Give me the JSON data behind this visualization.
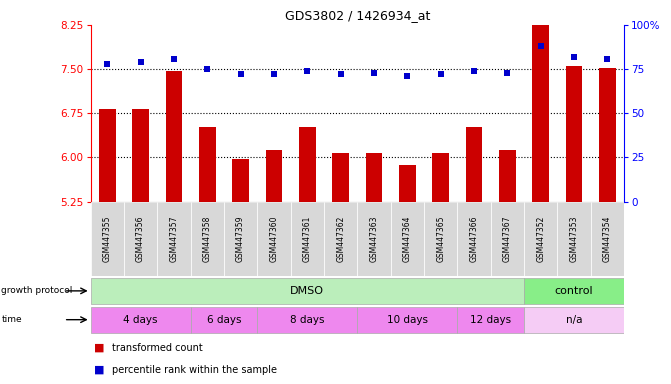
{
  "title": "GDS3802 / 1426934_at",
  "samples": [
    "GSM447355",
    "GSM447356",
    "GSM447357",
    "GSM447358",
    "GSM447359",
    "GSM447360",
    "GSM447361",
    "GSM447362",
    "GSM447363",
    "GSM447364",
    "GSM447365",
    "GSM447366",
    "GSM447367",
    "GSM447352",
    "GSM447353",
    "GSM447354"
  ],
  "bar_values": [
    6.83,
    6.82,
    7.47,
    6.52,
    5.97,
    6.12,
    6.52,
    6.07,
    6.08,
    5.88,
    6.07,
    6.52,
    6.12,
    8.42,
    7.55,
    7.52
  ],
  "percentile_values": [
    78,
    79,
    81,
    75,
    72,
    72,
    74,
    72,
    73,
    71,
    72,
    74,
    73,
    88,
    82,
    81
  ],
  "ylim_left": [
    5.25,
    8.25
  ],
  "ylim_right": [
    0,
    100
  ],
  "yticks_left": [
    5.25,
    6.0,
    6.75,
    7.5,
    8.25
  ],
  "yticks_right": [
    0,
    25,
    50,
    75,
    100
  ],
  "bar_color": "#cc0000",
  "dot_color": "#0000cc",
  "grid_dotted_values": [
    6.0,
    6.75,
    7.5
  ],
  "dmso_range": [
    0,
    12
  ],
  "control_range": [
    13,
    15
  ],
  "protocol_color_dmso": "#bbeebb",
  "protocol_color_control": "#88ee88",
  "time_segments": [
    {
      "label": "4 days",
      "start": 0,
      "end": 2,
      "color": "#ee88ee"
    },
    {
      "label": "6 days",
      "start": 3,
      "end": 4,
      "color": "#ee88ee"
    },
    {
      "label": "8 days",
      "start": 5,
      "end": 7,
      "color": "#ee88ee"
    },
    {
      "label": "10 days",
      "start": 8,
      "end": 10,
      "color": "#ee88ee"
    },
    {
      "label": "12 days",
      "start": 11,
      "end": 12,
      "color": "#ee88ee"
    },
    {
      "label": "n/a",
      "start": 13,
      "end": 15,
      "color": "#f5ccf5"
    }
  ],
  "legend_bar": "transformed count",
  "legend_dot": "percentile rank within the sample",
  "label_area_color": "#d8d8d8"
}
